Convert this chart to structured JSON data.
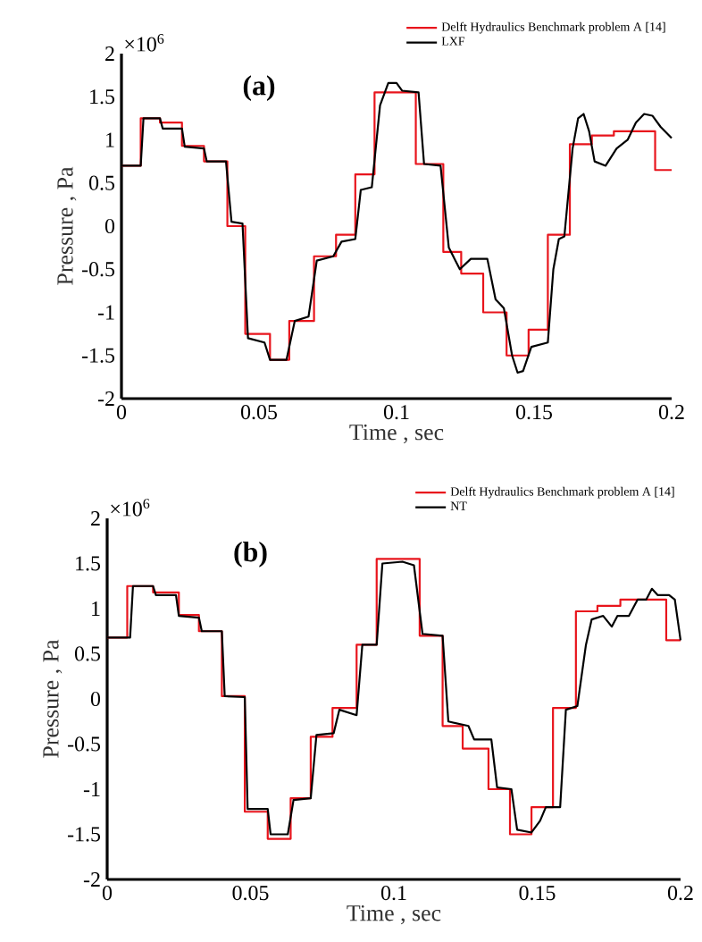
{
  "chart_data": [
    {
      "type": "line",
      "xlabel": "Time , sec",
      "ylabel": "Pressure , Pa",
      "annotations": [
        "(a)",
        "×10$^{6}$"
      ],
      "xlim": [
        0,
        0.2
      ],
      "ylim": [
        -2,
        2
      ],
      "xticks": [
        0,
        0.05,
        0.1,
        0.15,
        0.2
      ],
      "yticks": [
        -2,
        -1.5,
        -1,
        -0.5,
        0,
        0.5,
        1,
        1.5,
        2
      ],
      "legend": "top right",
      "marker": "none",
      "line_style": "solid",
      "grid": false,
      "series": [
        {
          "name": "Delft Hydraulics Benchmark problem A [14]",
          "type": "step",
          "color": "#e8141c",
          "x": [
            0,
            0.007,
            0.014,
            0.022,
            0.03,
            0.0385,
            0.045,
            0.054,
            0.061,
            0.07,
            0.078,
            0.085,
            0.092,
            0.107,
            0.117,
            0.1235,
            0.1315,
            0.14,
            0.148,
            0.155,
            0.163,
            0.171,
            0.179,
            0.194,
            0.2
          ],
          "values": [
            0.7,
            1.25,
            1.2,
            0.93,
            0.75,
            0.0,
            -1.25,
            -1.55,
            -1.1,
            -0.35,
            -0.1,
            0.6,
            1.55,
            0.72,
            -0.3,
            -0.55,
            -1.0,
            -1.5,
            -1.2,
            -0.1,
            0.95,
            1.05,
            1.1,
            0.65,
            0.65
          ]
        },
        {
          "name": "LXF",
          "color": "#000000",
          "x": [
            0,
            0.007,
            0.008,
            0.014,
            0.015,
            0.022,
            0.023,
            0.03,
            0.031,
            0.038,
            0.04,
            0.044,
            0.046,
            0.052,
            0.054,
            0.06,
            0.063,
            0.068,
            0.071,
            0.077,
            0.08,
            0.085,
            0.087,
            0.091,
            0.094,
            0.097,
            0.1,
            0.102,
            0.108,
            0.11,
            0.116,
            0.119,
            0.123,
            0.127,
            0.133,
            0.136,
            0.139,
            0.142,
            0.144,
            0.146,
            0.149,
            0.155,
            0.157,
            0.159,
            0.161,
            0.164,
            0.166,
            0.168,
            0.17,
            0.172,
            0.176,
            0.18,
            0.184,
            0.187,
            0.19,
            0.193,
            0.196,
            0.2
          ],
          "values": [
            0.7,
            0.7,
            1.25,
            1.25,
            1.13,
            1.13,
            0.92,
            0.9,
            0.75,
            0.75,
            0.05,
            0.03,
            -1.3,
            -1.35,
            -1.55,
            -1.55,
            -1.1,
            -1.05,
            -0.4,
            -0.35,
            -0.18,
            -0.15,
            0.42,
            0.45,
            1.4,
            1.66,
            1.66,
            1.57,
            1.55,
            0.72,
            0.7,
            -0.25,
            -0.5,
            -0.38,
            -0.38,
            -0.85,
            -0.95,
            -1.5,
            -1.7,
            -1.68,
            -1.4,
            -1.35,
            -0.5,
            -0.15,
            -0.12,
            0.9,
            1.25,
            1.3,
            1.1,
            0.75,
            0.7,
            0.9,
            1.0,
            1.2,
            1.3,
            1.28,
            1.15,
            1.02
          ]
        }
      ]
    },
    {
      "type": "line",
      "xlabel": "Time , sec",
      "ylabel": "Pressure , Pa",
      "annotations": [
        "(b)",
        "×10$^{6}$"
      ],
      "xlim": [
        0,
        0.2
      ],
      "ylim": [
        -2,
        2
      ],
      "xticks": [
        0,
        0.05,
        0.1,
        0.15,
        0.2
      ],
      "yticks": [
        -2,
        -1.5,
        -1,
        -0.5,
        0,
        0.5,
        1,
        1.5,
        2
      ],
      "legend": "top right",
      "marker": "none",
      "line_style": "solid",
      "grid": false,
      "series": [
        {
          "name": "Delft Hydraulics Benchmark problem A [14]",
          "type": "step",
          "color": "#e8141c",
          "x": [
            0,
            0.007,
            0.016,
            0.025,
            0.032,
            0.04,
            0.048,
            0.056,
            0.064,
            0.071,
            0.0786,
            0.087,
            0.094,
            0.109,
            0.117,
            0.124,
            0.133,
            0.1405,
            0.148,
            0.1555,
            0.1635,
            0.171,
            0.179,
            0.195,
            0.2
          ],
          "values": [
            0.68,
            1.25,
            1.18,
            0.93,
            0.75,
            0.03,
            -1.25,
            -1.55,
            -1.1,
            -0.42,
            -0.1,
            0.6,
            1.55,
            0.7,
            -0.3,
            -0.55,
            -1.0,
            -1.5,
            -1.2,
            -0.1,
            0.97,
            1.03,
            1.1,
            0.65,
            0.65
          ]
        },
        {
          "name": "NT",
          "color": "#000000",
          "x": [
            0,
            0.008,
            0.009,
            0.016,
            0.017,
            0.024,
            0.025,
            0.032,
            0.033,
            0.04,
            0.041,
            0.048,
            0.049,
            0.056,
            0.057,
            0.063,
            0.065,
            0.071,
            0.073,
            0.079,
            0.081,
            0.087,
            0.089,
            0.094,
            0.096,
            0.103,
            0.107,
            0.11,
            0.117,
            0.119,
            0.126,
            0.128,
            0.134,
            0.136,
            0.141,
            0.143,
            0.148,
            0.151,
            0.153,
            0.158,
            0.16,
            0.164,
            0.167,
            0.169,
            0.173,
            0.176,
            0.178,
            0.182,
            0.185,
            0.188,
            0.19,
            0.192,
            0.196,
            0.198,
            0.2
          ],
          "values": [
            0.68,
            0.68,
            1.25,
            1.25,
            1.15,
            1.15,
            0.92,
            0.9,
            0.75,
            0.75,
            0.03,
            0.02,
            -1.22,
            -1.22,
            -1.5,
            -1.5,
            -1.12,
            -1.1,
            -0.4,
            -0.38,
            -0.12,
            -0.18,
            0.6,
            0.6,
            1.5,
            1.52,
            1.48,
            0.72,
            0.7,
            -0.25,
            -0.3,
            -0.45,
            -0.45,
            -0.98,
            -1.0,
            -1.45,
            -1.48,
            -1.35,
            -1.2,
            -1.2,
            -0.12,
            -0.08,
            0.6,
            0.88,
            0.92,
            0.8,
            0.92,
            0.92,
            1.1,
            1.1,
            1.22,
            1.15,
            1.15,
            1.1,
            0.65
          ]
        }
      ]
    }
  ]
}
